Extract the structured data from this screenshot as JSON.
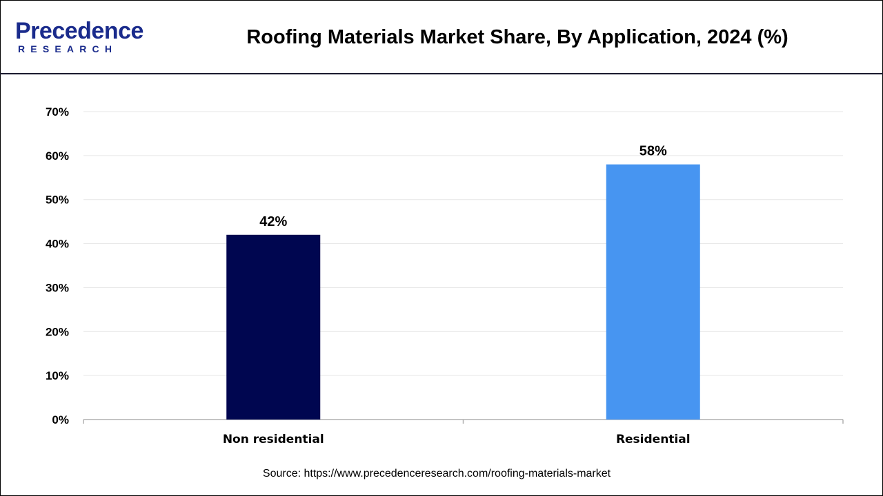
{
  "logo": {
    "wordmark": "Precedence",
    "subtext": "RESEARCH",
    "colors": {
      "primary": "#1a2b8c",
      "accent": "#1e88e5"
    },
    "icon": "leaf-swoosh-icon"
  },
  "chart_data": {
    "type": "bar",
    "title": "Roofing Materials Market Share, By Application, 2024 (%)",
    "categories": [
      "Non residential",
      "Residential"
    ],
    "values": [
      42,
      58
    ],
    "data_labels": [
      "42%",
      "58%"
    ],
    "bar_colors": [
      "#000650",
      "#4795f1"
    ],
    "xlabel": "",
    "ylabel": "",
    "ylim": [
      0,
      70
    ],
    "yticks": [
      0,
      10,
      20,
      30,
      40,
      50,
      60,
      70
    ],
    "ytick_labels": [
      "0%",
      "10%",
      "20%",
      "30%",
      "40%",
      "50%",
      "60%",
      "70%"
    ],
    "grid": true,
    "legend": "none"
  },
  "source": "Source: https://www.precedenceresearch.com/roofing-materials-market"
}
